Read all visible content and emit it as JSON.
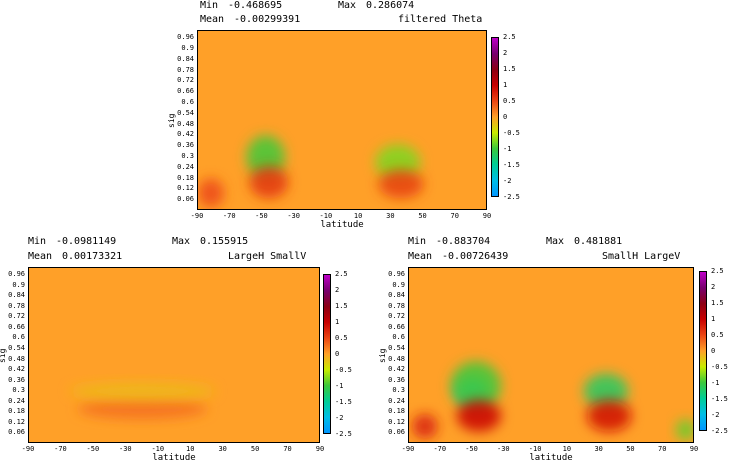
{
  "chart_data": [
    {
      "type": "heatmap",
      "id": "p1",
      "stats": {
        "min_label": "Min",
        "min": "-0.468695",
        "max_label": "Max",
        "max": "0.286074",
        "mean_label": "Mean",
        "mean": "-0.00299391"
      },
      "title": "filtered Theta",
      "xlabel": "latitude",
      "ylabel": "sig",
      "xlim": [
        -90,
        90
      ],
      "ylim": [
        0.0,
        1.0
      ],
      "xticks": [
        "-90",
        "-70",
        "-50",
        "-30",
        "-10",
        "10",
        "30",
        "50",
        "70",
        "90"
      ],
      "yticks": [
        "0.06",
        "0.12",
        "0.18",
        "0.24",
        "0.3",
        "0.36",
        "0.42",
        "0.48",
        "0.54",
        "0.6",
        "0.66",
        "0.72",
        "0.78",
        "0.84",
        "0.9",
        "0.96"
      ],
      "colorbar": {
        "ticks": [
          "2.5",
          "2",
          "1.5",
          "1",
          "0.5",
          "0",
          "-0.5",
          "-1",
          "-1.5",
          "-2",
          "-2.5"
        ],
        "range": [
          -2.5,
          2.5
        ]
      },
      "features": [
        {
          "lat": -48,
          "sig": 0.3,
          "value": -0.45,
          "rx": 12,
          "ry": 0.12
        },
        {
          "lat": 34,
          "sig": 0.27,
          "value": -0.35,
          "rx": 14,
          "ry": 0.1
        },
        {
          "lat": -46,
          "sig": 0.16,
          "value": 0.28,
          "rx": 12,
          "ry": 0.09
        },
        {
          "lat": 36,
          "sig": 0.15,
          "value": 0.25,
          "rx": 14,
          "ry": 0.08
        },
        {
          "lat": -82,
          "sig": 0.1,
          "value": 0.22,
          "rx": 8,
          "ry": 0.08
        }
      ]
    },
    {
      "type": "heatmap",
      "id": "p2",
      "stats": {
        "min_label": "Min",
        "min": "-0.0981149",
        "max_label": "Max",
        "max": "0.155915",
        "mean_label": "Mean",
        "mean": "0.00173321"
      },
      "title": "LargeH SmallV",
      "xlabel": "latitude",
      "ylabel": "sig",
      "xlim": [
        -90,
        90
      ],
      "ylim": [
        0.0,
        1.0
      ],
      "xticks": [
        "-90",
        "-70",
        "-50",
        "-30",
        "-10",
        "10",
        "30",
        "50",
        "70",
        "90"
      ],
      "yticks": [
        "0.06",
        "0.12",
        "0.18",
        "0.24",
        "0.3",
        "0.36",
        "0.42",
        "0.48",
        "0.54",
        "0.6",
        "0.66",
        "0.72",
        "0.78",
        "0.84",
        "0.9",
        "0.96"
      ],
      "colorbar": {
        "ticks": [
          "2.5",
          "2",
          "1.5",
          "1",
          "0.5",
          "0",
          "-0.5",
          "-1",
          "-1.5",
          "-2",
          "-2.5"
        ],
        "range": [
          -2.5,
          2.5
        ]
      },
      "features": [
        {
          "lat": -20,
          "sig": 0.2,
          "value": 0.12,
          "rx": 40,
          "ry": 0.06
        },
        {
          "lat": -20,
          "sig": 0.3,
          "value": -0.08,
          "rx": 45,
          "ry": 0.05
        }
      ]
    },
    {
      "type": "heatmap",
      "id": "p3",
      "stats": {
        "min_label": "Min",
        "min": "-0.883704",
        "max_label": "Max",
        "max": "0.481881",
        "mean_label": "Mean",
        "mean": "-0.00726439"
      },
      "title": "SmallH LargeV",
      "xlabel": "latitude",
      "ylabel": "sig",
      "xlim": [
        -90,
        90
      ],
      "ylim": [
        0.0,
        1.0
      ],
      "xticks": [
        "-90",
        "-70",
        "-50",
        "-30",
        "-10",
        "10",
        "30",
        "50",
        "70",
        "90"
      ],
      "yticks": [
        "0.06",
        "0.12",
        "0.18",
        "0.24",
        "0.3",
        "0.36",
        "0.42",
        "0.48",
        "0.54",
        "0.6",
        "0.66",
        "0.72",
        "0.78",
        "0.84",
        "0.9",
        "0.96"
      ],
      "colorbar": {
        "ticks": [
          "2.5",
          "2",
          "1.5",
          "1",
          "0.5",
          "0",
          "-0.5",
          "-1",
          "-1.5",
          "-2",
          "-2.5"
        ],
        "range": [
          -2.5,
          2.5
        ]
      },
      "features": [
        {
          "lat": -50,
          "sig": 0.3,
          "value": -0.88,
          "rx": 10,
          "ry": 0.08
        },
        {
          "lat": -48,
          "sig": 0.33,
          "value": -0.45,
          "rx": 16,
          "ry": 0.14
        },
        {
          "lat": 34,
          "sig": 0.3,
          "value": -0.55,
          "rx": 14,
          "ry": 0.1
        },
        {
          "lat": -46,
          "sig": 0.16,
          "value": 0.45,
          "rx": 14,
          "ry": 0.09
        },
        {
          "lat": 36,
          "sig": 0.16,
          "value": 0.4,
          "rx": 14,
          "ry": 0.09
        },
        {
          "lat": -80,
          "sig": 0.1,
          "value": 0.35,
          "rx": 8,
          "ry": 0.07
        },
        {
          "lat": 84,
          "sig": 0.08,
          "value": -0.4,
          "rx": 6,
          "ry": 0.06
        }
      ]
    }
  ]
}
